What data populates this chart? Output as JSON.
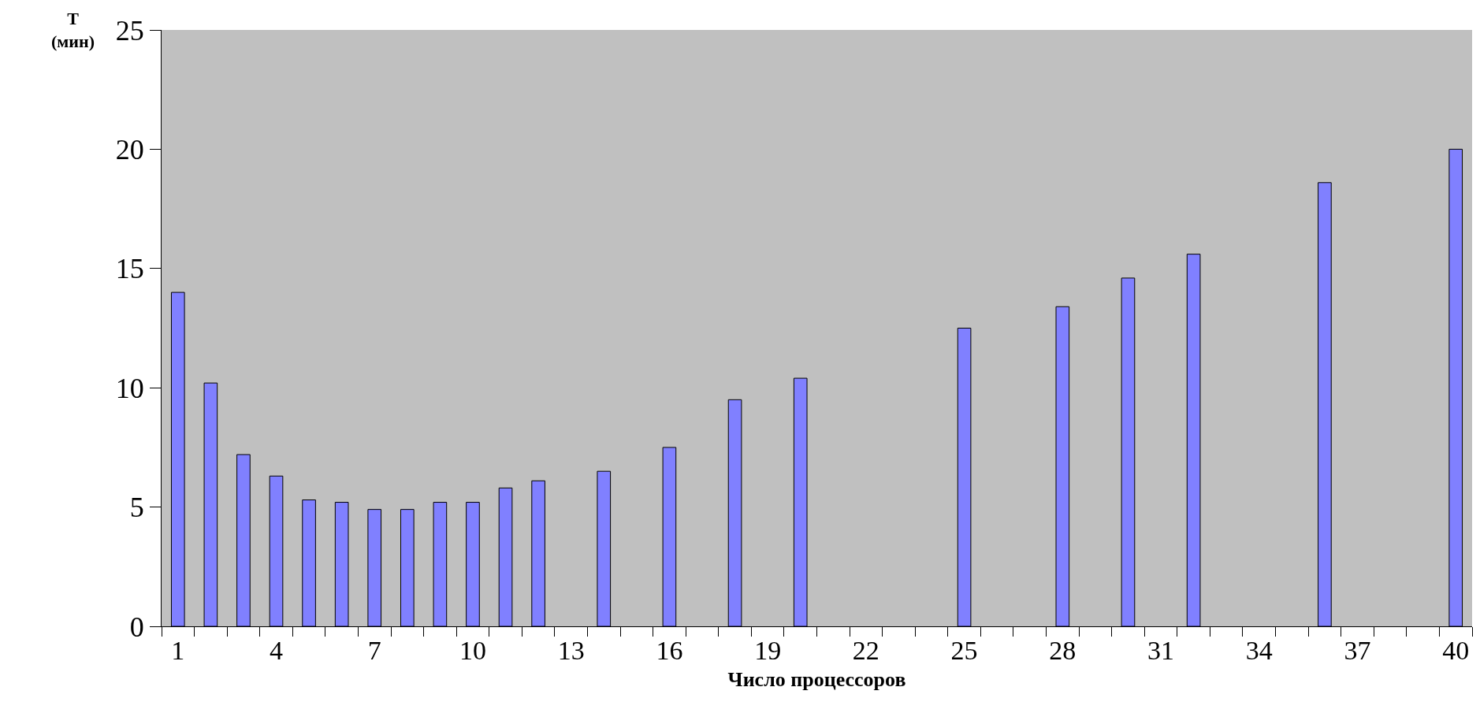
{
  "chart_data": {
    "type": "bar",
    "categories": [
      "1",
      null,
      null,
      "4",
      null,
      null,
      "7",
      null,
      null,
      "10",
      null,
      null,
      "13",
      null,
      null,
      "16",
      null,
      null,
      "19",
      null,
      null,
      "22",
      null,
      null,
      "25",
      null,
      null,
      "28",
      null,
      null,
      "31",
      null,
      null,
      "34",
      null,
      null,
      "37",
      null,
      null,
      "40"
    ],
    "values": [
      14,
      10.2,
      7.2,
      6.3,
      5.3,
      5.2,
      4.9,
      4.9,
      5.2,
      5.2,
      5.8,
      6.1,
      null,
      6.5,
      null,
      7.5,
      null,
      9.5,
      null,
      10.4,
      null,
      null,
      null,
      null,
      12.5,
      null,
      null,
      13.4,
      null,
      14.6,
      null,
      15.6,
      null,
      null,
      null,
      18.6,
      null,
      null,
      null,
      20
    ],
    "color": "#8080ff",
    "ylabel": "Т\n(мин)",
    "xlabel": "Число процессоров",
    "ylim": [
      0,
      25
    ],
    "yticks": [
      0,
      5,
      10,
      15,
      20,
      25
    ],
    "grid": false,
    "legend": false
  }
}
